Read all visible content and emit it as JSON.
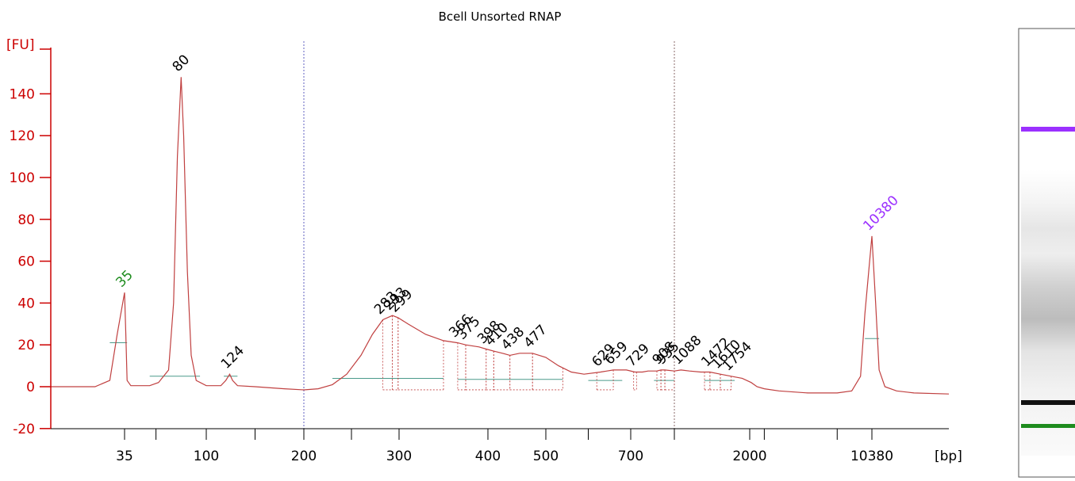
{
  "chart_data": {
    "type": "line",
    "title": "Bcell Unsorted RNAP",
    "ylabel": "[FU]",
    "xlabel": "[bp]",
    "ylim": [
      -20,
      150
    ],
    "yticks": [
      -20,
      0,
      20,
      40,
      60,
      80,
      100,
      120,
      140
    ],
    "xtick_labels": [
      "35",
      "100",
      "200",
      "300",
      "400",
      "500",
      "700",
      "2000",
      "10380"
    ],
    "grid": false,
    "legend": "none",
    "colors": {
      "axis": "#cc0000",
      "trace": "#c04040",
      "lower_marker": "#1e8c1e",
      "upper_marker": "#9b30ff",
      "baseline": "#4a9a8a",
      "dotted_line": "#6060c0"
    },
    "peak_labels": [
      {
        "bp": "35",
        "color": "#1e8c1e"
      },
      {
        "bp": "80",
        "color": "#000000"
      },
      {
        "bp": "124",
        "color": "#000000"
      },
      {
        "bp": "283",
        "color": "#000000"
      },
      {
        "bp": "293",
        "color": "#000000"
      },
      {
        "bp": "299",
        "color": "#000000"
      },
      {
        "bp": "366",
        "color": "#000000"
      },
      {
        "bp": "375",
        "color": "#000000"
      },
      {
        "bp": "398",
        "color": "#000000"
      },
      {
        "bp": "410",
        "color": "#000000"
      },
      {
        "bp": "438",
        "color": "#000000"
      },
      {
        "bp": "477",
        "color": "#000000"
      },
      {
        "bp": "629",
        "color": "#000000"
      },
      {
        "bp": "659",
        "color": "#000000"
      },
      {
        "bp": "729",
        "color": "#000000"
      },
      {
        "bp": "908",
        "color": "#000000"
      },
      {
        "bp": "935",
        "color": "#000000"
      },
      {
        "bp": "1088",
        "color": "#000000"
      },
      {
        "bp": "1472",
        "color": "#000000"
      },
      {
        "bp": "1610",
        "color": "#000000"
      },
      {
        "bp": "1754",
        "color": "#000000"
      },
      {
        "bp": "10380",
        "color": "#9b30ff"
      }
    ],
    "series": [
      {
        "points": [
          [
            25,
            0
          ],
          [
            31,
            0
          ],
          [
            33,
            3
          ],
          [
            34,
            25
          ],
          [
            35,
            45
          ],
          [
            36,
            25
          ],
          [
            37,
            3
          ],
          [
            40,
            0.5
          ],
          [
            55,
            0.5
          ],
          [
            62,
            2
          ],
          [
            70,
            8
          ],
          [
            74,
            40
          ],
          [
            77,
            110
          ],
          [
            80,
            148
          ],
          [
            82,
            120
          ],
          [
            85,
            55
          ],
          [
            88,
            15
          ],
          [
            92,
            3
          ],
          [
            100,
            0.5
          ],
          [
            115,
            0.5
          ],
          [
            120,
            3
          ],
          [
            124,
            6
          ],
          [
            127,
            3
          ],
          [
            132,
            0.5
          ],
          [
            150,
            0
          ],
          [
            180,
            -1
          ],
          [
            200,
            -1.5
          ],
          [
            215,
            -1
          ],
          [
            230,
            1
          ],
          [
            245,
            6
          ],
          [
            260,
            15
          ],
          [
            272,
            25
          ],
          [
            283,
            32
          ],
          [
            293,
            34
          ],
          [
            299,
            33
          ],
          [
            310,
            30
          ],
          [
            330,
            25
          ],
          [
            350,
            22
          ],
          [
            366,
            21
          ],
          [
            375,
            20
          ],
          [
            390,
            19
          ],
          [
            398,
            18
          ],
          [
            410,
            17
          ],
          [
            425,
            16
          ],
          [
            438,
            15
          ],
          [
            455,
            16
          ],
          [
            477,
            16
          ],
          [
            500,
            14
          ],
          [
            530,
            10
          ],
          [
            560,
            7
          ],
          [
            590,
            6
          ],
          [
            629,
            7
          ],
          [
            659,
            8
          ],
          [
            690,
            8
          ],
          [
            729,
            7
          ],
          [
            780,
            7
          ],
          [
            820,
            7.5
          ],
          [
            880,
            7.5
          ],
          [
            908,
            8
          ],
          [
            935,
            8
          ],
          [
            1000,
            7.5
          ],
          [
            1088,
            8
          ],
          [
            1200,
            7.5
          ],
          [
            1350,
            7
          ],
          [
            1472,
            7
          ],
          [
            1610,
            6
          ],
          [
            1754,
            5
          ],
          [
            1900,
            4
          ],
          [
            2100,
            2
          ],
          [
            2500,
            0
          ],
          [
            3000,
            -1
          ],
          [
            4000,
            -2
          ],
          [
            6000,
            -3
          ],
          [
            8000,
            -3
          ],
          [
            9000,
            -2
          ],
          [
            9600,
            5
          ],
          [
            9900,
            35
          ],
          [
            10380,
            72
          ],
          [
            10700,
            40
          ],
          [
            11000,
            8
          ],
          [
            11500,
            0
          ],
          [
            12500,
            -2
          ],
          [
            14000,
            -3
          ],
          [
            17000,
            -3.5
          ]
        ]
      }
    ]
  }
}
